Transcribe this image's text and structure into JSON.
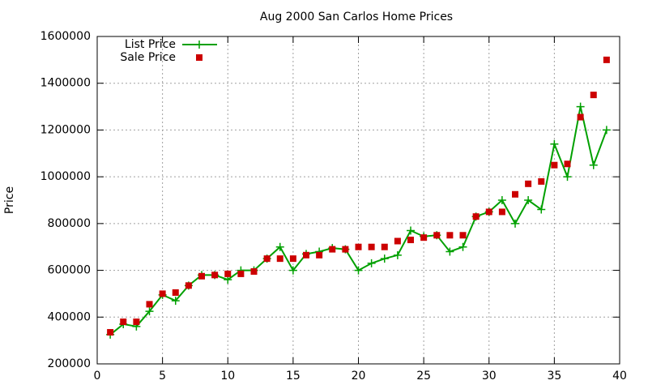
{
  "chart_data": {
    "type": "line",
    "title": "Aug 2000 San Carlos Home Prices",
    "ylabel": "Price",
    "x": [
      1,
      2,
      3,
      4,
      5,
      6,
      7,
      8,
      9,
      10,
      11,
      12,
      13,
      14,
      15,
      16,
      17,
      18,
      19,
      20,
      21,
      22,
      23,
      24,
      25,
      26,
      27,
      28,
      29,
      30,
      31,
      32,
      33,
      34,
      35,
      36,
      37,
      38,
      39
    ],
    "series": [
      {
        "name": "List Price",
        "color": "#00a000",
        "style": "linespoints",
        "values": [
          325000,
          370000,
          360000,
          425000,
          495000,
          470000,
          535000,
          580000,
          580000,
          560000,
          600000,
          600000,
          650000,
          700000,
          600000,
          670000,
          680000,
          695000,
          690000,
          600000,
          630000,
          650000,
          665000,
          770000,
          745000,
          750000,
          680000,
          700000,
          830000,
          850000,
          900000,
          800000,
          900000,
          860000,
          1140000,
          1000000,
          1300000,
          1050000,
          1200000
        ]
      },
      {
        "name": "Sale Price",
        "color": "#cc0000",
        "style": "points",
        "values": [
          335000,
          380000,
          380000,
          455000,
          500000,
          505000,
          535000,
          575000,
          580000,
          585000,
          585000,
          595000,
          650000,
          650000,
          650000,
          665000,
          665000,
          690000,
          690000,
          700000,
          700000,
          700000,
          725000,
          730000,
          740000,
          750000,
          750000,
          750000,
          830000,
          850000,
          850000,
          925000,
          970000,
          980000,
          1050000,
          1055000,
          1255000,
          1350000,
          1500000
        ]
      }
    ],
    "xlim": [
      0,
      40
    ],
    "xticks": [
      0,
      5,
      10,
      15,
      20,
      25,
      30,
      35,
      40
    ],
    "ylim": [
      200000,
      1600000
    ],
    "yticks": [
      200000,
      400000,
      600000,
      800000,
      1000000,
      1200000,
      1400000,
      1600000
    ],
    "grid": true,
    "legend": "top-left"
  }
}
